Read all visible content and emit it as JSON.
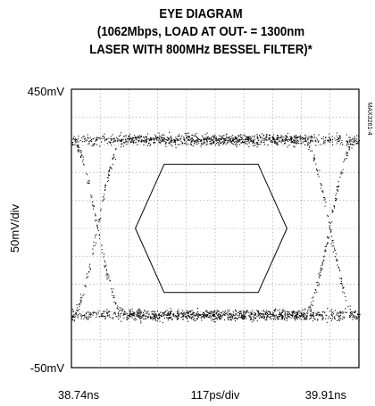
{
  "chart_data": {
    "type": "scatter",
    "title_lines": [
      "EYE DIAGRAM",
      "(1062Mbps, LOAD AT OUT- = 1300nm",
      "LASER WITH 800MHz BESSEL FILTER)*"
    ],
    "y_top_label": "450mV",
    "y_bottom_label": "-50mV",
    "y_axis_label": "50mV/div",
    "x_left_label": "38.74ns",
    "x_center_label": "117ps/div",
    "x_right_label": "39.91ns",
    "figure_code": "MAX3261-4",
    "xlim": [
      38.74,
      39.91
    ],
    "ylim": [
      -50,
      450
    ],
    "grid": true,
    "divisions": {
      "x": 10,
      "y": 10
    },
    "eye_levels_mV": {
      "high": 360,
      "low": 45
    },
    "crossing_times_ns": [
      38.845,
      39.79
    ],
    "mask_polygon": {
      "t_ns": [
        39.0,
        39.117,
        39.5,
        39.617,
        39.5,
        39.117,
        39.0
      ],
      "v_mV": [
        200,
        315,
        315,
        200,
        85,
        85,
        200
      ]
    },
    "colors": {
      "trace": "#000000",
      "grid": "#9a9a9a",
      "frame": "#000000"
    }
  }
}
